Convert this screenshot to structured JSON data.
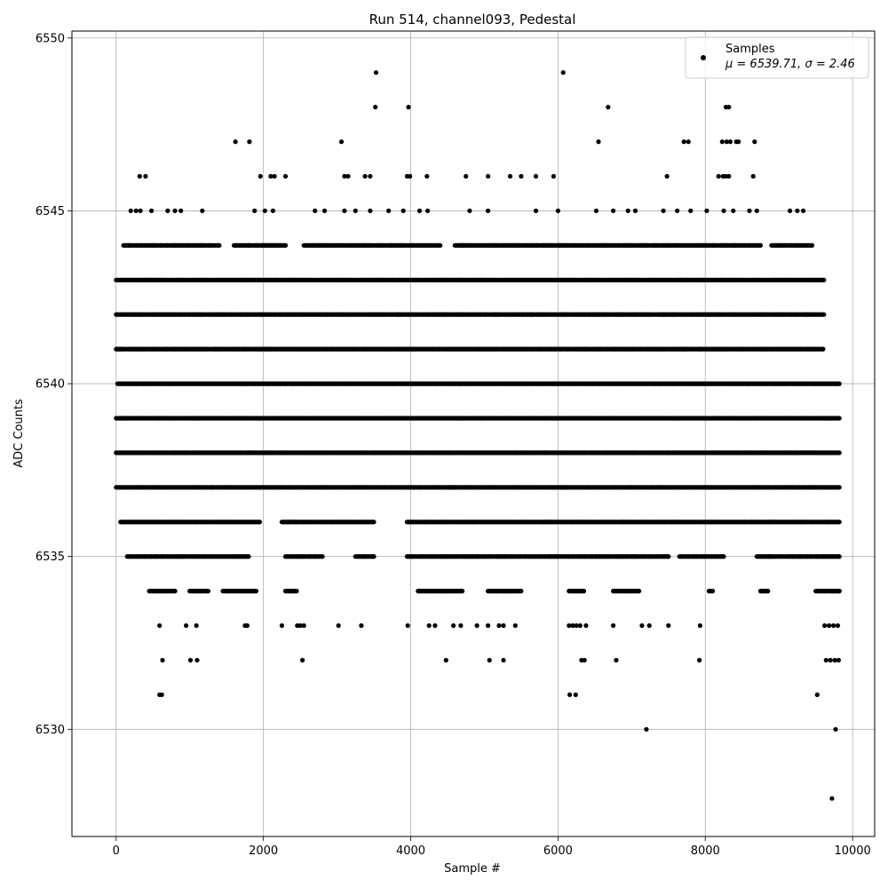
{
  "chart_data": {
    "type": "scatter",
    "title": "Run 514, channel093, Pedestal",
    "xlabel": "Sample #",
    "ylabel": "ADC Counts",
    "xlim": [
      -600,
      10300
    ],
    "ylim": [
      6526.9,
      6550.2
    ],
    "xticks": [
      0,
      2000,
      4000,
      6000,
      8000,
      10000
    ],
    "xtick_labels": [
      "0",
      "2000",
      "4000",
      "6000",
      "8000",
      "10000"
    ],
    "yticks": [
      6530,
      6535,
      6540,
      6545,
      6550
    ],
    "ytick_labels": [
      "6530",
      "6535",
      "6540",
      "6545",
      "6550"
    ],
    "grid": true,
    "marker_color": "#000000",
    "legend": {
      "placement": "top-right",
      "entries": [
        {
          "label": "Samples",
          "stats": "μ = 6539.71, σ = 2.46"
        }
      ]
    },
    "series": [
      {
        "name": "Samples",
        "level_runs": [
          {
            "y": 6539,
            "runs": [
              [
                0,
                9820
              ]
            ]
          },
          {
            "y": 6540,
            "runs": [
              [
                20,
                9820
              ]
            ]
          },
          {
            "y": 6538,
            "runs": [
              [
                0,
                9820
              ]
            ]
          },
          {
            "y": 6541,
            "runs": [
              [
                0,
                9600
              ]
            ]
          },
          {
            "y": 6542,
            "runs": [
              [
                0,
                9610
              ]
            ]
          },
          {
            "y": 6537,
            "runs": [
              [
                0,
                9820
              ]
            ]
          },
          {
            "y": 6543,
            "runs": [
              [
                0,
                9610
              ]
            ]
          },
          {
            "y": 6536,
            "runs": [
              [
                60,
                1950
              ],
              [
                2250,
                3500
              ],
              [
                3950,
                9820
              ]
            ]
          },
          {
            "y": 6544,
            "runs": [
              [
                100,
                1400
              ],
              [
                1600,
                2300
              ],
              [
                2550,
                4400
              ],
              [
                4600,
                8750
              ],
              [
                8900,
                9450
              ]
            ]
          },
          {
            "y": 6535,
            "runs": [
              [
                150,
                1800
              ],
              [
                2300,
                2800
              ],
              [
                3250,
                3500
              ],
              [
                3950,
                7500
              ],
              [
                7650,
                8250
              ],
              [
                8700,
                9820
              ]
            ]
          },
          {
            "y": 6534,
            "runs": [
              [
                450,
                800
              ],
              [
                1000,
                1250
              ],
              [
                1450,
                1900
              ],
              [
                2300,
                2450
              ],
              [
                4100,
                4700
              ],
              [
                5050,
                5500
              ],
              [
                6150,
                6350
              ],
              [
                6750,
                7100
              ],
              [
                8050,
                8100
              ],
              [
                8750,
                8850
              ],
              [
                9500,
                9820
              ]
            ]
          }
        ],
        "points": [
          {
            "x": 200,
            "y": 6545
          },
          {
            "x": 270,
            "y": 6545
          },
          {
            "x": 330,
            "y": 6545
          },
          {
            "x": 480,
            "y": 6545
          },
          {
            "x": 700,
            "y": 6545
          },
          {
            "x": 800,
            "y": 6545
          },
          {
            "x": 880,
            "y": 6545
          },
          {
            "x": 1170,
            "y": 6545
          },
          {
            "x": 1880,
            "y": 6545
          },
          {
            "x": 2020,
            "y": 6545
          },
          {
            "x": 2130,
            "y": 6545
          },
          {
            "x": 2700,
            "y": 6545
          },
          {
            "x": 2830,
            "y": 6545
          },
          {
            "x": 3100,
            "y": 6545
          },
          {
            "x": 3250,
            "y": 6545
          },
          {
            "x": 3450,
            "y": 6545
          },
          {
            "x": 3700,
            "y": 6545
          },
          {
            "x": 3900,
            "y": 6545
          },
          {
            "x": 4120,
            "y": 6545
          },
          {
            "x": 4230,
            "y": 6545
          },
          {
            "x": 4800,
            "y": 6545
          },
          {
            "x": 5050,
            "y": 6545
          },
          {
            "x": 5700,
            "y": 6545
          },
          {
            "x": 6000,
            "y": 6545
          },
          {
            "x": 6520,
            "y": 6545
          },
          {
            "x": 6750,
            "y": 6545
          },
          {
            "x": 6950,
            "y": 6545
          },
          {
            "x": 7050,
            "y": 6545
          },
          {
            "x": 7430,
            "y": 6545
          },
          {
            "x": 7620,
            "y": 6545
          },
          {
            "x": 7800,
            "y": 6545
          },
          {
            "x": 8020,
            "y": 6545
          },
          {
            "x": 8250,
            "y": 6545
          },
          {
            "x": 8380,
            "y": 6545
          },
          {
            "x": 8600,
            "y": 6545
          },
          {
            "x": 8700,
            "y": 6545
          },
          {
            "x": 9150,
            "y": 6545
          },
          {
            "x": 9250,
            "y": 6545
          },
          {
            "x": 9330,
            "y": 6545
          },
          {
            "x": 320,
            "y": 6546
          },
          {
            "x": 400,
            "y": 6546
          },
          {
            "x": 1960,
            "y": 6546
          },
          {
            "x": 2100,
            "y": 6546
          },
          {
            "x": 2150,
            "y": 6546
          },
          {
            "x": 2300,
            "y": 6546
          },
          {
            "x": 3100,
            "y": 6546
          },
          {
            "x": 3150,
            "y": 6546
          },
          {
            "x": 3380,
            "y": 6546
          },
          {
            "x": 3450,
            "y": 6546
          },
          {
            "x": 3950,
            "y": 6546
          },
          {
            "x": 3990,
            "y": 6546
          },
          {
            "x": 4220,
            "y": 6546
          },
          {
            "x": 4750,
            "y": 6546
          },
          {
            "x": 5050,
            "y": 6546
          },
          {
            "x": 5350,
            "y": 6546
          },
          {
            "x": 5500,
            "y": 6546
          },
          {
            "x": 5700,
            "y": 6546
          },
          {
            "x": 5940,
            "y": 6546
          },
          {
            "x": 7480,
            "y": 6546
          },
          {
            "x": 8180,
            "y": 6546
          },
          {
            "x": 8240,
            "y": 6546
          },
          {
            "x": 8280,
            "y": 6546
          },
          {
            "x": 8320,
            "y": 6546
          },
          {
            "x": 8650,
            "y": 6546
          },
          {
            "x": 1620,
            "y": 6547
          },
          {
            "x": 1810,
            "y": 6547
          },
          {
            "x": 3060,
            "y": 6547
          },
          {
            "x": 6550,
            "y": 6547
          },
          {
            "x": 7710,
            "y": 6547
          },
          {
            "x": 7770,
            "y": 6547
          },
          {
            "x": 8230,
            "y": 6547
          },
          {
            "x": 8290,
            "y": 6547
          },
          {
            "x": 8340,
            "y": 6547
          },
          {
            "x": 8420,
            "y": 6547
          },
          {
            "x": 8450,
            "y": 6547
          },
          {
            "x": 8670,
            "y": 6547
          },
          {
            "x": 3520,
            "y": 6548
          },
          {
            "x": 3970,
            "y": 6548
          },
          {
            "x": 6680,
            "y": 6548
          },
          {
            "x": 8280,
            "y": 6548
          },
          {
            "x": 8320,
            "y": 6548
          },
          {
            "x": 3530,
            "y": 6549
          },
          {
            "x": 6070,
            "y": 6549
          },
          {
            "x": 590,
            "y": 6533
          },
          {
            "x": 950,
            "y": 6533
          },
          {
            "x": 1090,
            "y": 6533
          },
          {
            "x": 1750,
            "y": 6533
          },
          {
            "x": 1780,
            "y": 6533
          },
          {
            "x": 2250,
            "y": 6533
          },
          {
            "x": 2460,
            "y": 6533
          },
          {
            "x": 2500,
            "y": 6533
          },
          {
            "x": 2550,
            "y": 6533
          },
          {
            "x": 3020,
            "y": 6533
          },
          {
            "x": 3330,
            "y": 6533
          },
          {
            "x": 3960,
            "y": 6533
          },
          {
            "x": 4250,
            "y": 6533
          },
          {
            "x": 4330,
            "y": 6533
          },
          {
            "x": 4580,
            "y": 6533
          },
          {
            "x": 4680,
            "y": 6533
          },
          {
            "x": 4900,
            "y": 6533
          },
          {
            "x": 5050,
            "y": 6533
          },
          {
            "x": 5200,
            "y": 6533
          },
          {
            "x": 5260,
            "y": 6533
          },
          {
            "x": 5420,
            "y": 6533
          },
          {
            "x": 6150,
            "y": 6533
          },
          {
            "x": 6200,
            "y": 6533
          },
          {
            "x": 6250,
            "y": 6533
          },
          {
            "x": 6300,
            "y": 6533
          },
          {
            "x": 6380,
            "y": 6533
          },
          {
            "x": 6750,
            "y": 6533
          },
          {
            "x": 7140,
            "y": 6533
          },
          {
            "x": 7240,
            "y": 6533
          },
          {
            "x": 7500,
            "y": 6533
          },
          {
            "x": 7930,
            "y": 6533
          },
          {
            "x": 9620,
            "y": 6533
          },
          {
            "x": 9680,
            "y": 6533
          },
          {
            "x": 9740,
            "y": 6533
          },
          {
            "x": 9800,
            "y": 6533
          },
          {
            "x": 630,
            "y": 6532
          },
          {
            "x": 1010,
            "y": 6532
          },
          {
            "x": 1100,
            "y": 6532
          },
          {
            "x": 2530,
            "y": 6532
          },
          {
            "x": 4480,
            "y": 6532
          },
          {
            "x": 5070,
            "y": 6532
          },
          {
            "x": 5260,
            "y": 6532
          },
          {
            "x": 6320,
            "y": 6532
          },
          {
            "x": 6360,
            "y": 6532
          },
          {
            "x": 6790,
            "y": 6532
          },
          {
            "x": 7920,
            "y": 6532
          },
          {
            "x": 9640,
            "y": 6532
          },
          {
            "x": 9700,
            "y": 6532
          },
          {
            "x": 9760,
            "y": 6532
          },
          {
            "x": 9810,
            "y": 6532
          },
          {
            "x": 590,
            "y": 6531
          },
          {
            "x": 620,
            "y": 6531
          },
          {
            "x": 6160,
            "y": 6531
          },
          {
            "x": 6240,
            "y": 6531
          },
          {
            "x": 9520,
            "y": 6531
          },
          {
            "x": 7200,
            "y": 6530
          },
          {
            "x": 9770,
            "y": 6530
          },
          {
            "x": 9720,
            "y": 6528
          }
        ]
      }
    ]
  }
}
